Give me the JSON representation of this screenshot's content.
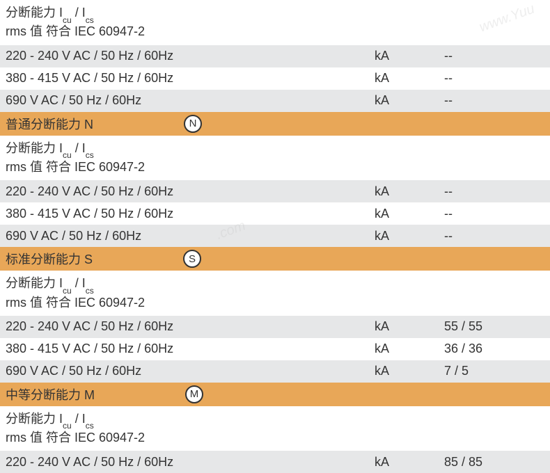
{
  "colors": {
    "row_white": "#ffffff",
    "row_gray": "#e6e7e8",
    "row_orange": "#e8a758",
    "text": "#333333",
    "circle_border": "#333333",
    "circle_bg": "#ffffff"
  },
  "typography": {
    "body_fontsize": 18,
    "subscript_fontsize": 12,
    "circle_fontsize": 15
  },
  "sections": [
    {
      "header_partial": {
        "line1_prefix": "分断能力 I",
        "line1_sub1": "cu",
        "line1_mid": " / I",
        "line1_sub2": "cs",
        "line2": "rms 值 符合 IEC 60947-2"
      },
      "rows": [
        {
          "label": "220 - 240 V AC / 50 Hz / 60Hz",
          "unit": "kA",
          "value": "--",
          "bg": "gray"
        },
        {
          "label": "380 - 415 V AC / 50 Hz / 60Hz",
          "unit": "kA",
          "value": "--",
          "bg": "white"
        },
        {
          "label": "690 V AC / 50 Hz / 60Hz",
          "unit": "kA",
          "value": "--",
          "bg": "gray"
        }
      ]
    },
    {
      "title": "普通分断能力 N",
      "icon_letter": "N",
      "header": {
        "line1_prefix": "分断能力 I",
        "line1_sub1": "cu",
        "line1_mid": " / I",
        "line1_sub2": "cs",
        "line2": "rms 值 符合 IEC 60947-2"
      },
      "rows": [
        {
          "label": "220 - 240 V AC / 50 Hz / 60Hz",
          "unit": "kA",
          "value": "--",
          "bg": "gray"
        },
        {
          "label": "380 - 415 V AC / 50 Hz / 60Hz",
          "unit": "kA",
          "value": "--",
          "bg": "white"
        },
        {
          "label": "690 V AC / 50 Hz / 60Hz",
          "unit": "kA",
          "value": "--",
          "bg": "gray"
        }
      ]
    },
    {
      "title": "标准分断能力 S",
      "icon_letter": "S",
      "header": {
        "line1_prefix": "分断能力 I",
        "line1_sub1": "cu",
        "line1_mid": " / I",
        "line1_sub2": "cs",
        "line2": "rms 值 符合 IEC 60947-2"
      },
      "rows": [
        {
          "label": "220 - 240 V AC / 50 Hz / 60Hz",
          "unit": "kA",
          "value": "55 / 55",
          "bg": "gray"
        },
        {
          "label": "380 - 415 V AC / 50 Hz / 60Hz",
          "unit": "kA",
          "value": "36 / 36",
          "bg": "white"
        },
        {
          "label": "690 V AC / 50 Hz / 60Hz",
          "unit": "kA",
          "value": "7 / 5",
          "bg": "gray"
        }
      ]
    },
    {
      "title": "中等分断能力 M",
      "icon_letter": "M",
      "header": {
        "line1_prefix": "分断能力 I",
        "line1_sub1": "cu",
        "line1_mid": " / I",
        "line1_sub2": "cs",
        "line2": "rms 值 符合 IEC 60947-2"
      },
      "rows": [
        {
          "label": "220 - 240 V AC / 50 Hz / 60Hz",
          "unit": "kA",
          "value": "85 / 85",
          "bg": "gray"
        }
      ]
    }
  ],
  "watermarks": {
    "wm1": "www.Yuu",
    "wm2": ".com"
  }
}
